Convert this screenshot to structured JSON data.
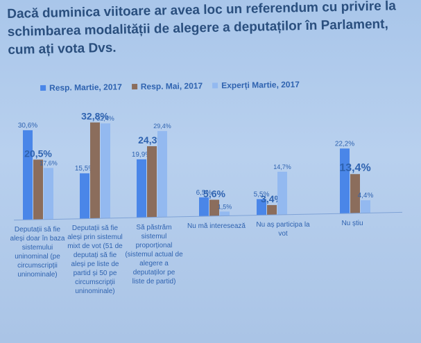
{
  "title_lines": [
    "Dacă duminica viitoare ar avea loc un referendum cu privire la",
    "schimbarea modalității de alegere a deputaților în Parlament,",
    "cum ați vota Dvs."
  ],
  "colors": {
    "series1": "#4a86e8",
    "series2": "#8b6d5c",
    "series3": "#93b9f0",
    "text": "#2f63b0"
  },
  "chart_data": {
    "type": "bar",
    "title": "Dacă duminica viitoare ar avea loc un referendum cu privire la schimbarea modalității de alegere a deputaților în Parlament, cum ați vota Dvs.",
    "legend": "top",
    "grid": false,
    "ylim": [
      0,
      35
    ],
    "categories": [
      "Deputații să fie aleși doar în baza sistemului uninominal (pe circumscripții uninominale)",
      "Deputații să fie aleși prin sistemul mixt de vot (51 de deputați să fie aleși pe liste de partid și 50 pe circumscripții uninominale)",
      "Să păstrăm sistemul proporțional (sistemul actual de alegere a deputaților pe liste de partid)",
      "Nu mă interesează",
      "Nu aș participa la vot",
      "Nu știu"
    ],
    "category_lines": [
      [
        "Deputații să fie",
        "aleși doar în baza",
        "sistemului",
        "uninominal (pe",
        "circumscripții",
        "uninominale)"
      ],
      [
        "Deputații să fie",
        "aleși prin sistemul",
        "mixt de vot (51 de",
        "deputați să fie",
        "aleși pe liste de",
        "partid și 50 pe",
        "circumscripții",
        "uninominale)"
      ],
      [
        "Să păstrăm",
        "sistemul",
        "proporțional",
        "(sistemul actual de",
        "alegere a",
        "deputaților pe",
        "liste de partid)"
      ],
      [
        "Nu mă interesează"
      ],
      [
        "Nu aș participa la",
        "vot"
      ],
      [
        "Nu știu"
      ]
    ],
    "series": [
      {
        "name": "Resp. Martie, 2017",
        "values": [
          30.6,
          15.5,
          19.9,
          6.5,
          5.5,
          22.2
        ],
        "labels": [
          "30,6%",
          "15,5%",
          "19,9%",
          "6,5%",
          "5,5%",
          "22,2%"
        ]
      },
      {
        "name": "Resp. Mai, 2017",
        "values": [
          20.5,
          32.8,
          24.3,
          5.6,
          3.4,
          13.4
        ],
        "labels": [
          "20,5%",
          "32,8%",
          "24,3%",
          "5,6%",
          "3,4%",
          "13,4%"
        ]
      },
      {
        "name": "Experți Martie, 2017",
        "values": [
          17.6,
          32.4,
          29.4,
          1.5,
          14.7,
          4.4
        ],
        "labels": [
          "17,6%",
          "32,4%",
          "29,4%",
          "1,5%",
          "14,7%",
          "4,4%"
        ]
      }
    ]
  }
}
